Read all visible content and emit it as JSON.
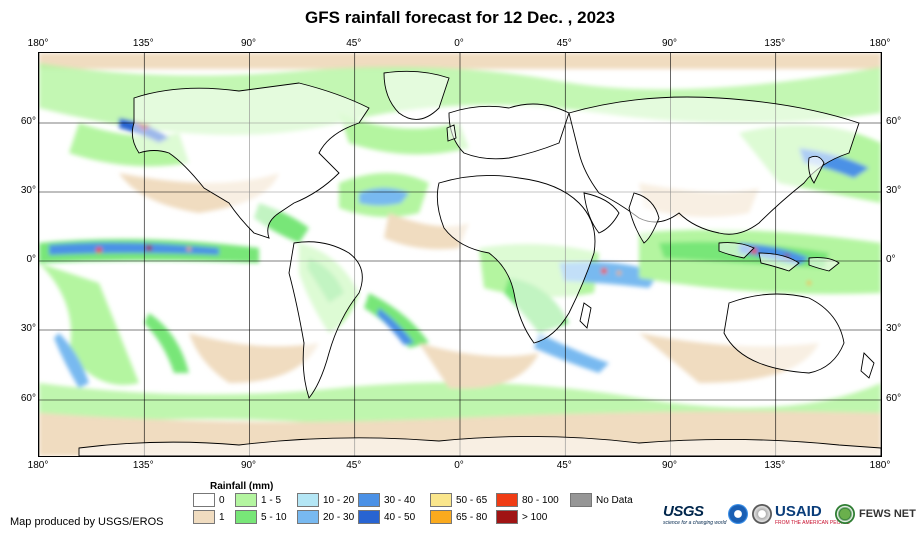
{
  "title": "GFS rainfall forecast for 12 Dec. , 2023",
  "map": {
    "longitude_labels": [
      "180°",
      "135°",
      "90°",
      "45°",
      "0°",
      "45°",
      "90°",
      "135°",
      "180°"
    ],
    "latitude_labels": [
      "60°",
      "30°",
      "0°",
      "30°",
      "60°"
    ],
    "colors": {
      "land_outline": "#000000",
      "grid": "#000000",
      "background": "#ffffff"
    }
  },
  "legend": {
    "title": "Rainfall (mm)",
    "items": [
      {
        "label": "0",
        "color": "#ffffff"
      },
      {
        "label": "1",
        "color": "#f0dcc0"
      },
      {
        "label": "1 - 5",
        "color": "#b4f5a0"
      },
      {
        "label": "5 - 10",
        "color": "#78e678"
      },
      {
        "label": "10 - 20",
        "color": "#b4e6f5"
      },
      {
        "label": "20 - 30",
        "color": "#78b9f0"
      },
      {
        "label": "30 - 40",
        "color": "#4b91e6"
      },
      {
        "label": "40 - 50",
        "color": "#2864d2"
      },
      {
        "label": "50 - 65",
        "color": "#fae68c"
      },
      {
        "label": "65 - 80",
        "color": "#faaa1e"
      },
      {
        "label": "80 - 100",
        "color": "#f03c14"
      },
      {
        "label": "> 100",
        "color": "#a01414"
      },
      {
        "label": "No Data",
        "color": "#969696"
      }
    ]
  },
  "footer": {
    "credit": "Map produced by USGS/EROS",
    "logos": {
      "usgs": "USGS",
      "usgs_tagline": "science for a changing world",
      "usaid": "USAID",
      "usaid_tagline": "FROM THE AMERICAN PEOPLE",
      "fews": "FEWS NET"
    }
  }
}
